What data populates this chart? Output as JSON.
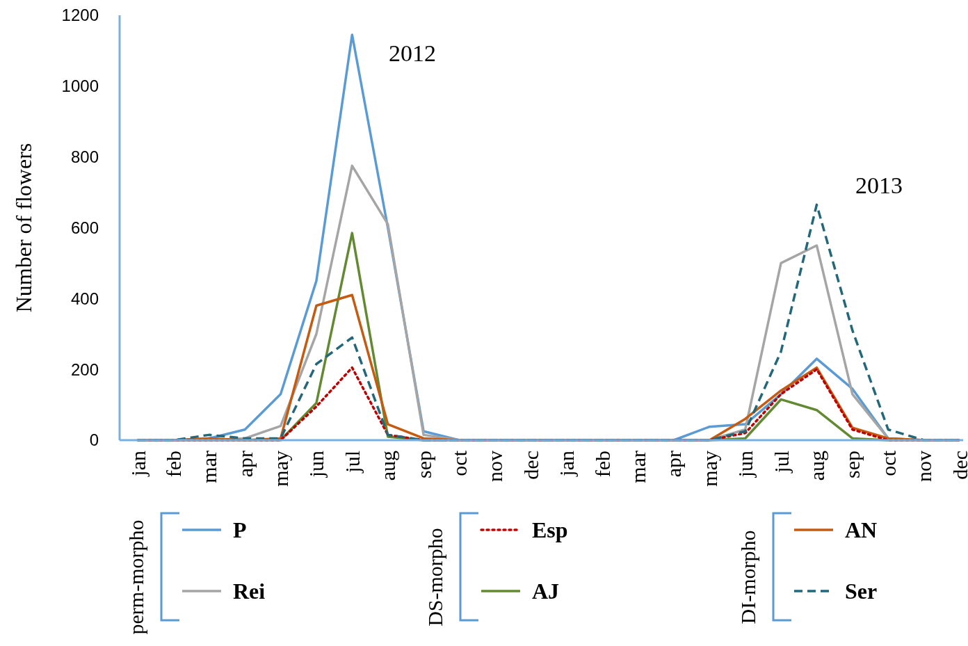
{
  "chart_data": {
    "type": "line",
    "ylabel": "Number of flowers",
    "categories": [
      "jan",
      "feb",
      "mar",
      "apr",
      "may",
      "jun",
      "jul",
      "aug",
      "sep",
      "oct",
      "nov",
      "dec",
      "jan",
      "feb",
      "mar",
      "apr",
      "may",
      "jun",
      "jul",
      "aug",
      "sep",
      "oct",
      "nov",
      "dec"
    ],
    "ylim": [
      0,
      1200
    ],
    "yticks": [
      0,
      200,
      400,
      600,
      800,
      1000,
      1200
    ],
    "grid": false,
    "legend": "bottom",
    "marker": "none",
    "annotations": [
      "2012",
      "2013",
      "perm-morpho",
      "DS-morpho",
      "DI-morpho"
    ],
    "series": [
      {
        "name": "P",
        "color": "#5b9bd5",
        "line_style": "solid",
        "values": [
          0,
          0,
          5,
          30,
          130,
          450,
          1145,
          600,
          25,
          0,
          0,
          0,
          0,
          0,
          0,
          0,
          38,
          45,
          130,
          230,
          145,
          5,
          0,
          0
        ]
      },
      {
        "name": "Rei",
        "color": "#a5a5a5",
        "line_style": "solid",
        "values": [
          0,
          0,
          0,
          5,
          40,
          300,
          775,
          610,
          15,
          0,
          0,
          0,
          0,
          0,
          0,
          0,
          0,
          30,
          500,
          550,
          130,
          5,
          0,
          0
        ]
      },
      {
        "name": "Esp",
        "color": "#c00000",
        "line_style": "dotted",
        "values": [
          0,
          0,
          0,
          0,
          0,
          95,
          205,
          15,
          0,
          0,
          0,
          0,
          0,
          0,
          0,
          0,
          0,
          20,
          130,
          200,
          30,
          0,
          0,
          0
        ]
      },
      {
        "name": "AJ",
        "color": "#638a32",
        "line_style": "solid",
        "values": [
          0,
          0,
          0,
          0,
          0,
          105,
          585,
          10,
          0,
          0,
          0,
          0,
          0,
          0,
          0,
          0,
          0,
          5,
          115,
          85,
          5,
          0,
          0,
          0
        ]
      },
      {
        "name": "AN",
        "color": "#c55a11",
        "line_style": "solid",
        "values": [
          0,
          0,
          5,
          0,
          5,
          380,
          410,
          45,
          5,
          0,
          0,
          0,
          0,
          0,
          0,
          0,
          0,
          60,
          140,
          205,
          35,
          5,
          0,
          0
        ]
      },
      {
        "name": "Ser",
        "color": "#23677a",
        "line_style": "dashed",
        "values": [
          0,
          0,
          15,
          5,
          5,
          215,
          290,
          15,
          0,
          0,
          0,
          0,
          0,
          0,
          0,
          0,
          0,
          25,
          250,
          665,
          310,
          30,
          0,
          0
        ]
      }
    ]
  }
}
